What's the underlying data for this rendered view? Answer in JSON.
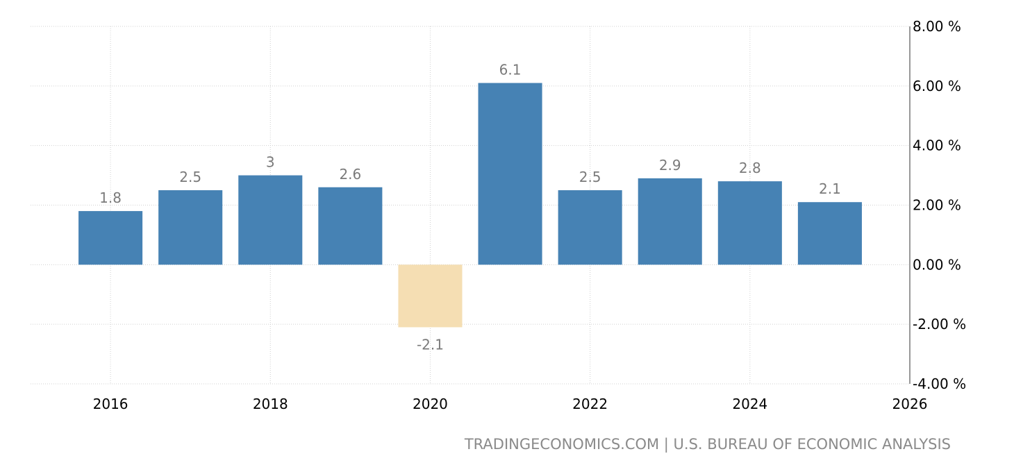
{
  "chart_data": {
    "type": "bar",
    "x": [
      2016,
      2017,
      2018,
      2019,
      2020,
      2021,
      2022,
      2023,
      2024,
      2025
    ],
    "values": [
      1.8,
      2.5,
      3,
      2.6,
      -2.1,
      6.1,
      2.5,
      2.9,
      2.8,
      2.1
    ],
    "data_labels": [
      "1.8",
      "2.5",
      "3",
      "2.6",
      "-2.1",
      "6.1",
      "2.5",
      "2.9",
      "2.8",
      "2.1"
    ],
    "xticks": [
      2016,
      2018,
      2020,
      2022,
      2024,
      2026
    ],
    "xtick_labels": [
      "2016",
      "2018",
      "2020",
      "2022",
      "2024",
      "2026"
    ],
    "xlim": [
      2015,
      2026
    ],
    "yticks": [
      -4,
      -2,
      0,
      2,
      4,
      6,
      8
    ],
    "ytick_labels": [
      "-4.00 %",
      "-2.00 %",
      "0.00 %",
      "2.00 %",
      "4.00 %",
      "6.00 %",
      "8.00 %"
    ],
    "ylim": [
      -4,
      8
    ],
    "yaxis_side": "right",
    "grid": true,
    "colors": {
      "positive": "#4682b4",
      "negative": "#f5deb3"
    },
    "title": "",
    "xlabel": "",
    "ylabel": ""
  },
  "source": "TRADINGECONOMICS.COM | U.S. BUREAU OF ECONOMIC ANALYSIS"
}
